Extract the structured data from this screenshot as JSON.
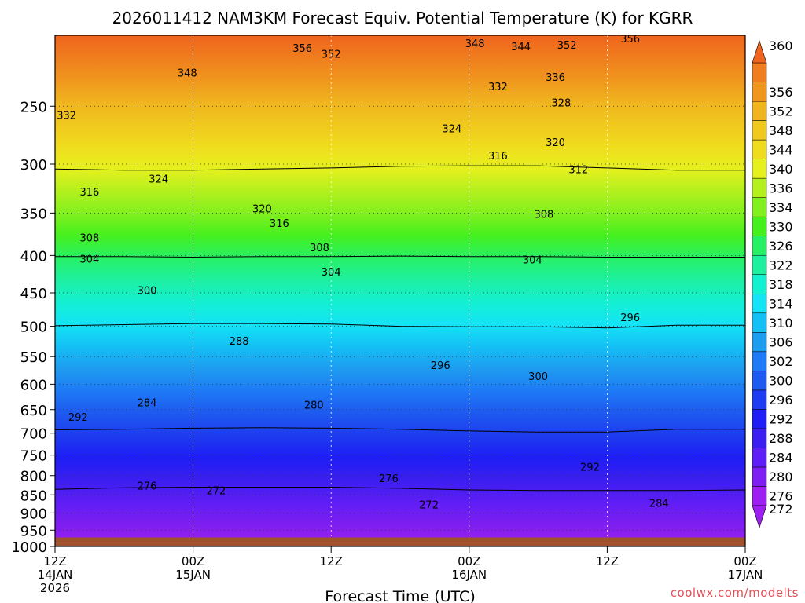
{
  "chart_data": {
    "type": "heatmap",
    "title": "2026011412 NAM3KM Forecast Equiv. Potential Temperature (K) for KGRR",
    "xlabel": "Forecast Time (UTC)",
    "ylabel": "",
    "credit": "coolwx.com/modelts",
    "y_axis": {
      "scale": "log",
      "inverted": true,
      "range": [
        200,
        1000
      ],
      "ticks": [
        250,
        300,
        350,
        400,
        450,
        500,
        550,
        600,
        650,
        700,
        750,
        800,
        850,
        900,
        950,
        1000
      ]
    },
    "x_axis": {
      "range_hours": [
        0,
        60
      ],
      "ticks": [
        {
          "hour": 0,
          "lines": [
            "12Z",
            "14JAN",
            "2026"
          ]
        },
        {
          "hour": 12,
          "lines": [
            "00Z",
            "15JAN"
          ]
        },
        {
          "hour": 24,
          "lines": [
            "12Z"
          ]
        },
        {
          "hour": 36,
          "lines": [
            "00Z",
            "16JAN"
          ]
        },
        {
          "hour": 48,
          "lines": [
            "12Z"
          ]
        },
        {
          "hour": 60,
          "lines": [
            "00Z",
            "17JAN"
          ]
        }
      ]
    },
    "grid": true,
    "surface_pressure_hpa": 972,
    "colorbar": {
      "position": "right",
      "unit": "K",
      "levels": [
        272,
        276,
        280,
        284,
        288,
        292,
        296,
        300,
        302,
        306,
        310,
        314,
        318,
        322,
        326,
        330,
        334,
        336,
        340,
        344,
        348,
        352,
        356,
        360
      ],
      "colors": [
        "#9d20f0",
        "#7e1ef0",
        "#5e1ef5",
        "#3b1ef0",
        "#1e1ef5",
        "#1e3cf0",
        "#1e5af0",
        "#1e7af5",
        "#1e9cf0",
        "#14c0f5",
        "#14e4f5",
        "#14f0d2",
        "#1ef0a0",
        "#28f064",
        "#46f01e",
        "#82f01e",
        "#b4f01e",
        "#e6f01e",
        "#f0dc1e",
        "#f0c81e",
        "#f0b41e",
        "#f0961e",
        "#f07d1e",
        "#f0641e"
      ]
    },
    "series": [
      {
        "name": "300 hPa",
        "x_hours": [
          0,
          6,
          12,
          18,
          24,
          30,
          36,
          42,
          48,
          54,
          60
        ],
        "values": [
          318,
          322,
          322,
          318,
          314,
          308,
          306,
          306,
          314,
          322,
          322
        ]
      },
      {
        "name": "400 hPa",
        "x_hours": [
          0,
          6,
          12,
          18,
          24,
          30,
          36,
          42,
          48,
          54,
          60
        ],
        "values": [
          304,
          304,
          306,
          304,
          304,
          302,
          304,
          304,
          306,
          306,
          306
        ]
      },
      {
        "name": "500 hPa",
        "x_hours": [
          0,
          6,
          12,
          18,
          24,
          30,
          36,
          42,
          48,
          54,
          60
        ],
        "values": [
          298,
          294,
          290,
          290,
          292,
          300,
          302,
          302,
          306,
          296,
          296
        ]
      },
      {
        "name": "700 hPa",
        "x_hours": [
          0,
          6,
          12,
          18,
          24,
          30,
          36,
          42,
          48,
          54,
          60
        ],
        "values": [
          288,
          286,
          282,
          280,
          282,
          286,
          292,
          296,
          296,
          286,
          286
        ]
      },
      {
        "name": "850 hPa",
        "x_hours": [
          0,
          6,
          12,
          18,
          24,
          30,
          36,
          42,
          48,
          54,
          60
        ],
        "values": [
          280,
          274,
          272,
          272,
          272,
          276,
          282,
          284,
          284,
          284,
          282
        ]
      }
    ],
    "contour_labels": [
      {
        "value": "356",
        "hour": 21.5,
        "p": 208
      },
      {
        "value": "352",
        "hour": 24.0,
        "p": 212
      },
      {
        "value": "348",
        "hour": 36.5,
        "p": 205
      },
      {
        "value": "344",
        "hour": 40.5,
        "p": 207
      },
      {
        "value": "352",
        "hour": 44.5,
        "p": 206
      },
      {
        "value": "356",
        "hour": 50.0,
        "p": 202
      },
      {
        "value": "348",
        "hour": 11.5,
        "p": 225
      },
      {
        "value": "336",
        "hour": 43.5,
        "p": 228
      },
      {
        "value": "332",
        "hour": 38.5,
        "p": 235
      },
      {
        "value": "328",
        "hour": 44.0,
        "p": 247
      },
      {
        "value": "332",
        "hour": 1.0,
        "p": 257
      },
      {
        "value": "324",
        "hour": 34.5,
        "p": 268
      },
      {
        "value": "320",
        "hour": 43.5,
        "p": 280
      },
      {
        "value": "316",
        "hour": 38.5,
        "p": 292
      },
      {
        "value": "312",
        "hour": 45.5,
        "p": 305
      },
      {
        "value": "324",
        "hour": 9.0,
        "p": 314
      },
      {
        "value": "316",
        "hour": 3.0,
        "p": 327
      },
      {
        "value": "320",
        "hour": 18.0,
        "p": 345
      },
      {
        "value": "316",
        "hour": 19.5,
        "p": 361
      },
      {
        "value": "308",
        "hour": 42.5,
        "p": 351
      },
      {
        "value": "308",
        "hour": 3.0,
        "p": 378
      },
      {
        "value": "308",
        "hour": 23.0,
        "p": 390
      },
      {
        "value": "304",
        "hour": 3.0,
        "p": 404
      },
      {
        "value": "304",
        "hour": 41.5,
        "p": 405
      },
      {
        "value": "304",
        "hour": 24.0,
        "p": 421
      },
      {
        "value": "300",
        "hour": 8.0,
        "p": 446
      },
      {
        "value": "296",
        "hour": 50.0,
        "p": 486
      },
      {
        "value": "288",
        "hour": 16.0,
        "p": 523
      },
      {
        "value": "296",
        "hour": 33.5,
        "p": 565
      },
      {
        "value": "300",
        "hour": 42.0,
        "p": 585
      },
      {
        "value": "284",
        "hour": 8.0,
        "p": 635
      },
      {
        "value": "292",
        "hour": 2.0,
        "p": 665
      },
      {
        "value": "280",
        "hour": 22.5,
        "p": 640
      },
      {
        "value": "292",
        "hour": 46.5,
        "p": 778
      },
      {
        "value": "276",
        "hour": 29.0,
        "p": 806
      },
      {
        "value": "276",
        "hour": 8.0,
        "p": 826
      },
      {
        "value": "272",
        "hour": 14.0,
        "p": 838
      },
      {
        "value": "272",
        "hour": 32.5,
        "p": 876
      },
      {
        "value": "284",
        "hour": 52.5,
        "p": 872
      }
    ]
  }
}
